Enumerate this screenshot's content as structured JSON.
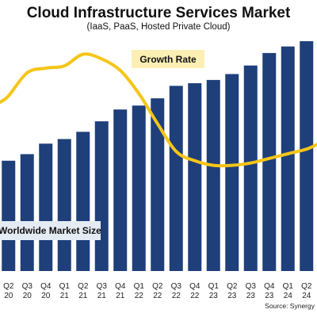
{
  "chart_data": {
    "type": "bar",
    "title": "Cloud Infrastructure Services Market",
    "subtitle": "(IaaS, PaaS, Hosted Private Cloud)",
    "source": "Source: Synergy",
    "categories_top": [
      "Q2",
      "Q3",
      "Q4",
      "Q1",
      "Q2",
      "Q3",
      "Q4",
      "Q1",
      "Q2",
      "Q3",
      "Q4",
      "Q1",
      "Q2",
      "Q3",
      "Q4",
      "Q1",
      "Q2"
    ],
    "categories_bottom": [
      "20",
      "20",
      "20",
      "21",
      "21",
      "21",
      "21",
      "22",
      "22",
      "22",
      "22",
      "23",
      "23",
      "23",
      "23",
      "24",
      "24"
    ],
    "grid": false,
    "series": [
      {
        "name": "Worldwide Market Size",
        "type": "bar",
        "color": "#1f3f7a",
        "values": [
          168,
          178,
          194,
          201,
          212,
          228,
          246,
          252,
          263,
          282,
          286,
          291,
          300,
          313,
          332,
          342,
          350
        ]
      },
      {
        "name": "Growth Rate",
        "type": "line",
        "color": "#f5c518",
        "values": [
          38,
          48,
          50,
          51,
          56,
          54,
          49,
          39,
          26,
          14,
          10,
          8,
          8,
          9,
          11,
          13,
          15
        ]
      }
    ],
    "legend_labels": {
      "line": "Growth Rate",
      "bar": "Worldwide Market Size"
    },
    "bar_color": "#1f3f7a",
    "line_color": "#f5c518",
    "legend_box_color": "#fcefb4",
    "legend_box_color_bar": "#e4ebf3"
  }
}
